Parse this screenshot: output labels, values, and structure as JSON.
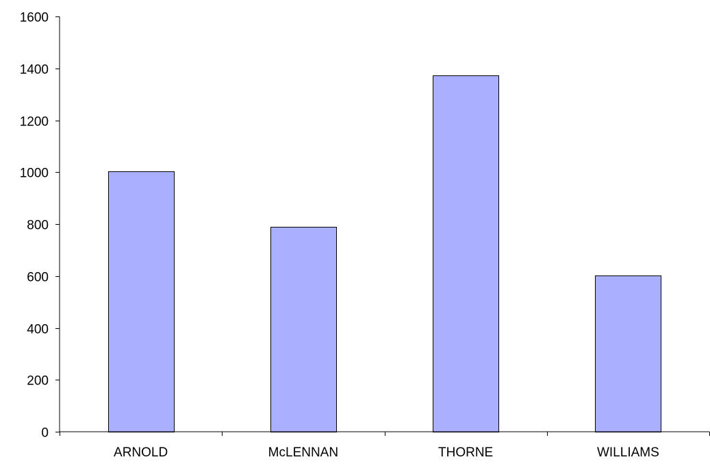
{
  "chart_data": {
    "type": "bar",
    "categories": [
      "ARNOLD",
      "McLENNAN",
      "THORNE",
      "WILLIAMS"
    ],
    "values": [
      1003,
      790,
      1372,
      603
    ],
    "title": "",
    "xlabel": "",
    "ylabel": "",
    "ylim": [
      0,
      1600
    ],
    "yticks": [
      0,
      200,
      400,
      600,
      800,
      1000,
      1200,
      1400,
      1600
    ],
    "grid": false,
    "legend": "none",
    "colors": {
      "bar_fill": "#aab0ff",
      "bar_stroke": "#000000",
      "axis": "#000000"
    }
  }
}
